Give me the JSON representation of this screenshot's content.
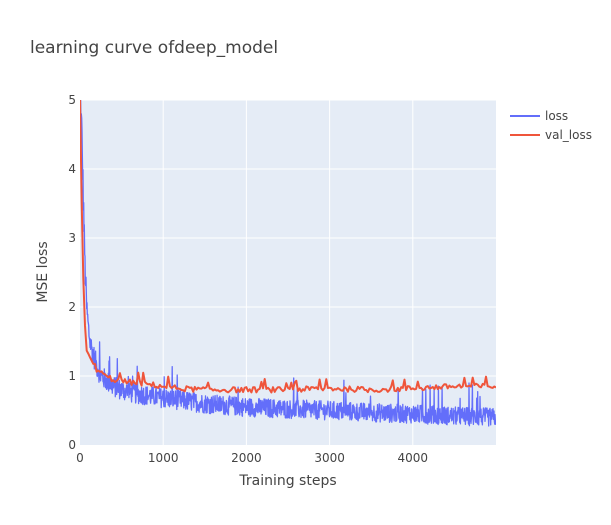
{
  "chart_data": {
    "type": "line",
    "title": "learning curve ofdeep_model",
    "xlabel": "Training steps",
    "ylabel": "MSE loss",
    "xlim": [
      0,
      5000
    ],
    "ylim": [
      0,
      5
    ],
    "x_ticks": [
      0,
      1000,
      2000,
      3000,
      4000
    ],
    "y_ticks": [
      0,
      1,
      2,
      3,
      4,
      5
    ],
    "grid": true,
    "legend_position": "top-right",
    "series": [
      {
        "name": "loss",
        "color": "#636efa",
        "x": [
          0,
          20,
          40,
          60,
          80,
          100,
          120,
          150,
          200,
          250,
          300,
          400,
          500,
          600,
          800,
          1000,
          1200,
          1500,
          2000,
          2500,
          3000,
          3500,
          4000,
          4500,
          5000
        ],
        "values": [
          5.0,
          4.6,
          3.6,
          2.6,
          2.0,
          1.7,
          1.5,
          1.35,
          1.15,
          1.0,
          0.95,
          0.85,
          0.8,
          0.76,
          0.72,
          0.68,
          0.65,
          0.6,
          0.55,
          0.52,
          0.5,
          0.47,
          0.45,
          0.42,
          0.4
        ],
        "noise": 0.12
      },
      {
        "name": "val_loss",
        "color": "#ef553b",
        "x": [
          0,
          20,
          40,
          60,
          80,
          100,
          150,
          200,
          300,
          400,
          500,
          700,
          1000,
          1200,
          1500,
          2000,
          2500,
          3000,
          3500,
          4000,
          4500,
          5000
        ],
        "values": [
          5.0,
          3.5,
          2.4,
          1.7,
          1.4,
          1.3,
          1.2,
          1.1,
          1.0,
          0.95,
          0.92,
          0.9,
          0.85,
          0.82,
          0.8,
          0.8,
          0.8,
          0.82,
          0.8,
          0.82,
          0.85,
          0.85
        ],
        "noise": 0.04
      }
    ]
  }
}
